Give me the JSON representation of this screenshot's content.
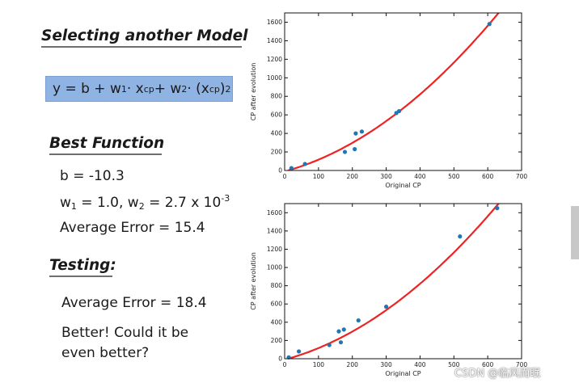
{
  "slide": {
    "title": "Selecting another Model",
    "formula": {
      "lhs": "y = b + w",
      "s1": "1",
      "m1": " · x",
      "s2": "cp",
      "m2": " + w",
      "s3": "2",
      "m3": " · (x",
      "s4": "cp",
      "m4": ")",
      "p": "2"
    },
    "best_function": {
      "heading": "Best Function",
      "b_line": "b = -10.3",
      "w_line": {
        "a": "w",
        "a_sub": "1",
        "b": " = 1.0, w",
        "b_sub": "2",
        "c": " = 2.7 x 10",
        "c_sup": "-3"
      },
      "error_line": "Average Error = 15.4"
    },
    "testing": {
      "heading": "Testing:",
      "error_line": "Average Error = 18.4",
      "comment_1": "Better! Could it be",
      "comment_2": "even better?"
    },
    "watermark": "CSDN @临风而眠"
  },
  "colors": {
    "points": "#1f77b4",
    "curve": "#ee2222",
    "formula_box": "#8fb4e3"
  },
  "chart_data": [
    {
      "type": "scatter",
      "xlabel": "Original CP",
      "ylabel": "CP after evolution",
      "xlim": [
        0,
        700
      ],
      "ylim": [
        0,
        1700
      ],
      "xticks": [
        0,
        100,
        200,
        300,
        400,
        500,
        600,
        700
      ],
      "yticks": [
        0,
        200,
        400,
        600,
        800,
        1000,
        1200,
        1400,
        1600
      ],
      "points": [
        [
          20,
          25
        ],
        [
          60,
          70
        ],
        [
          178,
          200
        ],
        [
          207,
          230
        ],
        [
          210,
          400
        ],
        [
          228,
          420
        ],
        [
          330,
          620
        ],
        [
          338,
          640
        ],
        [
          605,
          1580
        ]
      ],
      "fit": {
        "b": -10.3,
        "w1": 1.0,
        "w2": 0.0027
      },
      "grid": false
    },
    {
      "type": "scatter",
      "xlabel": "Original CP",
      "ylabel": "CP after evolution",
      "xlim": [
        0,
        700
      ],
      "ylim": [
        0,
        1700
      ],
      "xticks": [
        0,
        100,
        200,
        300,
        400,
        500,
        600,
        700
      ],
      "yticks": [
        0,
        200,
        400,
        600,
        800,
        1000,
        1200,
        1400,
        1600
      ],
      "points": [
        [
          12,
          15
        ],
        [
          42,
          80
        ],
        [
          132,
          150
        ],
        [
          160,
          300
        ],
        [
          166,
          180
        ],
        [
          175,
          320
        ],
        [
          218,
          420
        ],
        [
          300,
          570
        ],
        [
          518,
          1340
        ],
        [
          628,
          1650
        ]
      ],
      "fit": {
        "b": -10.3,
        "w1": 1.0,
        "w2": 0.0027
      },
      "grid": false
    }
  ]
}
